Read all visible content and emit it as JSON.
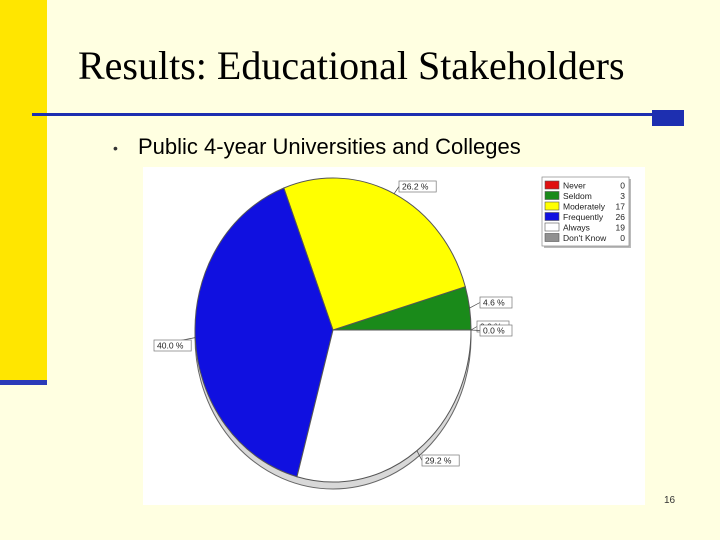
{
  "slide": {
    "title": "Results: Educational Stakeholders",
    "bullet": "•",
    "subtitle": "Public 4-year Universities and Colleges",
    "page_number": "16"
  },
  "chart_data": {
    "type": "pie",
    "legend_position": "top-right",
    "slices": [
      {
        "name": "Never",
        "count": "0",
        "percent": 0.0,
        "label": "0.0 %",
        "color": "#e01010"
      },
      {
        "name": "Seldom",
        "count": "3",
        "percent": 4.6,
        "label": "4.6 %",
        "color": "#1a8a1a"
      },
      {
        "name": "Moderately",
        "count": "17",
        "percent": 26.2,
        "label": "26.2 %",
        "color": "#ffff00"
      },
      {
        "name": "Frequently",
        "count": "26",
        "percent": 40.0,
        "label": "40.0 %",
        "color": "#1010e0"
      },
      {
        "name": "Always",
        "count": "19",
        "percent": 29.2,
        "label": "29.2 %",
        "color": "#ffffff"
      },
      {
        "name": "Don't Know",
        "count": "0",
        "percent": 0.0,
        "label": "0.0 %",
        "color": "#909090"
      }
    ]
  }
}
